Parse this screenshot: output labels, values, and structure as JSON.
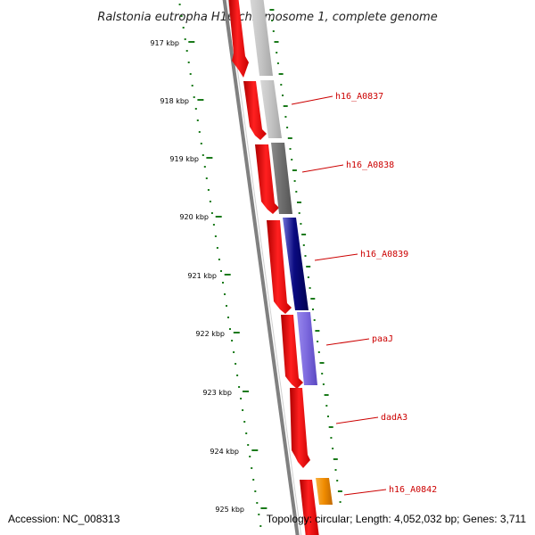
{
  "title": "Ralstonia eutropha H16 chromosome 1, complete genome",
  "footer": {
    "accession": "Accession: NC_008313",
    "summary": "Topology: circular; Length: 4,052,032 bp; Genes: 3,711"
  },
  "ruler_ticks": [
    "917 kbp",
    "918 kbp",
    "919 kbp",
    "920 kbp",
    "921 kbp",
    "922 kbp",
    "923 kbp",
    "924 kbp",
    "925 kbp"
  ],
  "gene_labels": [
    "h16_A0837",
    "h16_A0838",
    "h16_A0839",
    "paaJ",
    "dadA3",
    "h16_A0842"
  ],
  "colors": {
    "cds_red": "#ee0000",
    "backbone": "#808080",
    "ruler_green": "#1a7a1a",
    "label_red": "#cc0000",
    "light_gray": "#b8b8b8",
    "dark_gray": "#707070",
    "navy": "#0a0a80",
    "lavender": "#7b68dd",
    "orange": "#f08c00"
  }
}
